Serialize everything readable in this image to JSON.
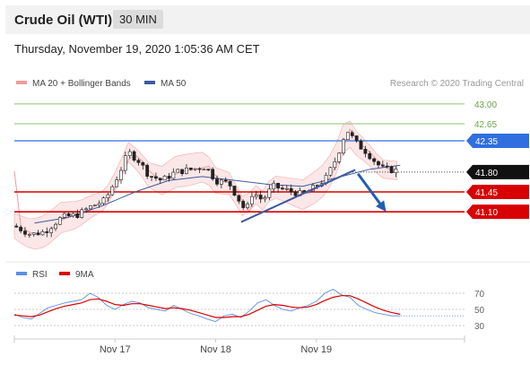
{
  "header": {
    "title": "Crude Oil (WTI)",
    "timeframe": "30 MIN"
  },
  "datetime": "Thursday, November 19, 2020 1:05:36 AM CET",
  "colors": {
    "bollinger": "#f29a9a",
    "ma50": "#3f5a9e",
    "green": "#8dc26f",
    "blue_level": "#2f6fe0",
    "red_level": "#d80000",
    "rsi": "#5b8ee6",
    "rsi_ma": "#d80000",
    "up_candle": "#ffffff",
    "down_candle": "#222222"
  },
  "chart_data": [
    {
      "type": "candlestick",
      "legend": [
        {
          "label": "MA 20 + Bollinger Bands",
          "color": "#f29a9a"
        },
        {
          "label": "MA 50",
          "color": "#3f5a9e"
        }
      ],
      "attribution": "Research © 2020 Trading Central",
      "x_ticks": [
        "Nov 17",
        "Nov 18",
        "Nov 19"
      ],
      "ylim": [
        40.25,
        43.25
      ],
      "levels": [
        {
          "value": 43.0,
          "label": "43.00",
          "kind": "target"
        },
        {
          "value": 42.65,
          "label": "42.65",
          "kind": "target"
        },
        {
          "value": 42.35,
          "label": "42.35",
          "kind": "resistance"
        },
        {
          "value": 41.8,
          "label": "41.80",
          "kind": "last"
        },
        {
          "value": 41.45,
          "label": "41.45",
          "kind": "support"
        },
        {
          "value": 41.1,
          "label": "41.10",
          "kind": "support"
        }
      ],
      "trendline": {
        "from": [
          3.38,
          40.92
        ],
        "to": [
          5.08,
          41.84
        ]
      },
      "forecast_arrow": {
        "from": [
          5.12,
          41.77
        ],
        "to": [
          5.54,
          41.1
        ]
      },
      "price_path": [
        [
          0.0,
          40.85
        ],
        [
          0.25,
          40.7
        ],
        [
          0.45,
          40.75
        ],
        [
          0.7,
          41.0
        ],
        [
          0.95,
          41.05
        ],
        [
          1.15,
          41.2
        ],
        [
          1.35,
          41.3
        ],
        [
          1.55,
          41.75
        ],
        [
          1.7,
          42.15
        ],
        [
          1.85,
          42.0
        ],
        [
          2.0,
          41.75
        ],
        [
          2.2,
          41.65
        ],
        [
          2.4,
          41.8
        ],
        [
          2.65,
          41.85
        ],
        [
          2.85,
          41.9
        ],
        [
          3.0,
          41.65
        ],
        [
          3.2,
          41.6
        ],
        [
          3.35,
          41.3
        ],
        [
          3.45,
          41.1
        ],
        [
          3.55,
          41.45
        ],
        [
          3.7,
          41.3
        ],
        [
          3.85,
          41.55
        ],
        [
          4.0,
          41.5
        ],
        [
          4.15,
          41.45
        ],
        [
          4.3,
          41.4
        ],
        [
          4.5,
          41.55
        ],
        [
          4.65,
          41.7
        ],
        [
          4.8,
          42.05
        ],
        [
          4.95,
          42.55
        ],
        [
          5.1,
          42.3
        ],
        [
          5.25,
          42.15
        ],
        [
          5.4,
          41.95
        ],
        [
          5.5,
          41.85
        ],
        [
          5.75,
          41.82
        ]
      ],
      "ma50_path": [
        [
          0.3,
          40.9
        ],
        [
          0.8,
          41.0
        ],
        [
          1.3,
          41.2
        ],
        [
          1.8,
          41.45
        ],
        [
          2.3,
          41.65
        ],
        [
          2.8,
          41.72
        ],
        [
          3.3,
          41.65
        ],
        [
          3.8,
          41.58
        ],
        [
          4.3,
          41.55
        ],
        [
          4.8,
          41.7
        ],
        [
          5.3,
          41.85
        ],
        [
          5.75,
          41.92
        ]
      ]
    },
    {
      "type": "line",
      "legend": [
        {
          "label": "RSI",
          "color": "#5b8ee6"
        },
        {
          "label": "9MA",
          "color": "#d80000"
        }
      ],
      "ylim": [
        20,
        80
      ],
      "y_ticks": [
        70,
        50,
        30
      ],
      "series": [
        {
          "name": "RSI",
          "values": [
            44,
            40,
            38,
            45,
            52,
            55,
            58,
            60,
            62,
            70,
            65,
            55,
            50,
            56,
            60,
            58,
            52,
            50,
            48,
            55,
            50,
            45,
            42,
            38,
            35,
            42,
            44,
            40,
            48,
            58,
            62,
            55,
            50,
            48,
            52,
            55,
            60,
            70,
            75,
            68,
            65,
            55,
            50,
            46,
            44,
            42,
            42
          ]
        },
        {
          "name": "9MA",
          "values": [
            43,
            42,
            41,
            43,
            47,
            51,
            54,
            56,
            58,
            62,
            63,
            60,
            56,
            55,
            57,
            57,
            55,
            53,
            51,
            52,
            51,
            49,
            46,
            43,
            40,
            40,
            41,
            41,
            44,
            49,
            54,
            56,
            55,
            53,
            52,
            53,
            56,
            61,
            65,
            67,
            67,
            63,
            58,
            53,
            49,
            46,
            44
          ]
        }
      ]
    }
  ]
}
